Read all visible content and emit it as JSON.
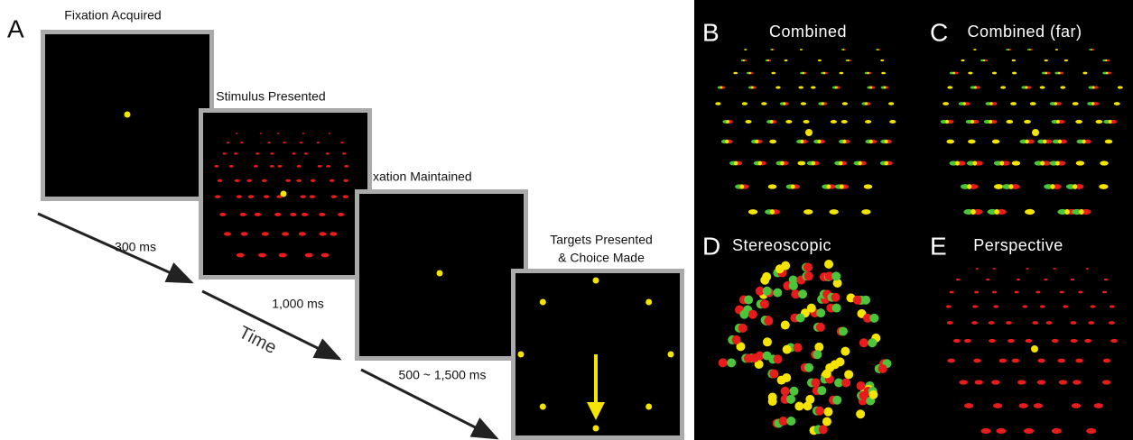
{
  "panel_a": {
    "label": "A",
    "screens": [
      {
        "title": "Fixation Acquired"
      },
      {
        "title": "Stimulus Presented"
      },
      {
        "title": "Fixation Maintained"
      },
      {
        "title_lines": [
          "Targets Presented",
          "& Choice Made"
        ]
      }
    ],
    "intervals": [
      "300 ms",
      "1,000 ms",
      "500 ~ 1,500 ms"
    ],
    "time_label": "Time"
  },
  "panels": [
    {
      "label": "B",
      "title": "Combined"
    },
    {
      "label": "C",
      "title": "Combined (far)"
    },
    {
      "label": "D",
      "title": "Stereoscopic"
    },
    {
      "label": "E",
      "title": "Perspective"
    }
  ]
}
